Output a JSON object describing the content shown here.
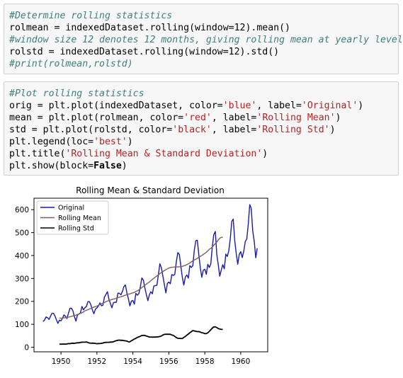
{
  "cells": [
    {
      "lines": [
        [
          {
            "t": "#Determine rolling statistics",
            "c": "comment"
          }
        ],
        [
          {
            "t": "rolmean = indexedDataset.rolling(window=12).mean()",
            "c": ""
          }
        ],
        [
          {
            "t": "#window size 12 denotes 12 months, giving rolling mean at yearly level",
            "c": "comment"
          }
        ],
        [
          {
            "t": "rolstd = indexedDataset.rolling(window=12).std()",
            "c": ""
          }
        ],
        [
          {
            "t": "#print(rolmean,rolstd)",
            "c": "comment"
          }
        ]
      ]
    },
    {
      "lines": [
        [
          {
            "t": "#Plot rolling statistics",
            "c": "comment"
          }
        ],
        [
          {
            "t": "orig = plt.plot(indexedDataset, color=",
            "c": ""
          },
          {
            "t": "'blue'",
            "c": "str"
          },
          {
            "t": ", label=",
            "c": ""
          },
          {
            "t": "'Original'",
            "c": "str"
          },
          {
            "t": ")",
            "c": ""
          }
        ],
        [
          {
            "t": "mean = plt.plot(rolmean, color=",
            "c": ""
          },
          {
            "t": "'red'",
            "c": "str"
          },
          {
            "t": ", label=",
            "c": ""
          },
          {
            "t": "'Rolling Mean'",
            "c": "str"
          },
          {
            "t": ")",
            "c": ""
          }
        ],
        [
          {
            "t": "std = plt.plot(rolstd, color=",
            "c": ""
          },
          {
            "t": "'black'",
            "c": "str"
          },
          {
            "t": ", label=",
            "c": ""
          },
          {
            "t": "'Rolling Std'",
            "c": "str"
          },
          {
            "t": ")",
            "c": ""
          }
        ],
        [
          {
            "t": "plt.legend(loc=",
            "c": ""
          },
          {
            "t": "'best'",
            "c": "str"
          },
          {
            "t": ")",
            "c": ""
          }
        ],
        [
          {
            "t": "plt.title(",
            "c": ""
          },
          {
            "t": "'Rolling Mean & Standard Deviation'",
            "c": "str"
          },
          {
            "t": ")",
            "c": ""
          }
        ],
        [
          {
            "t": "plt.show(block=",
            "c": ""
          },
          {
            "t": "False",
            "c": "bold"
          },
          {
            "t": ")",
            "c": ""
          }
        ]
      ]
    }
  ],
  "chart_data": {
    "type": "line",
    "title": "Rolling Mean & Standard Deviation",
    "xlabel": "",
    "ylabel": "",
    "xlim": [
      1948.5,
      1961.5
    ],
    "ylim": [
      -20,
      650
    ],
    "xticks": [
      1950,
      1952,
      1954,
      1956,
      1958,
      1960
    ],
    "yticks": [
      0,
      100,
      200,
      300,
      400,
      500,
      600
    ],
    "legend": "upper-left",
    "grid": false,
    "series": [
      {
        "name": "Original",
        "color": "#1a1aa8",
        "x_start": 1949.0,
        "x_step": 0.0833333,
        "values": [
          112,
          118,
          132,
          129,
          121,
          135,
          148,
          148,
          136,
          119,
          104,
          118,
          115,
          126,
          141,
          135,
          125,
          149,
          170,
          170,
          158,
          133,
          114,
          140,
          145,
          150,
          178,
          163,
          172,
          178,
          199,
          199,
          184,
          162,
          146,
          166,
          171,
          180,
          193,
          181,
          183,
          218,
          230,
          242,
          209,
          191,
          172,
          194,
          196,
          196,
          236,
          235,
          229,
          243,
          264,
          272,
          237,
          211,
          180,
          201,
          204,
          188,
          235,
          227,
          234,
          264,
          302,
          293,
          259,
          229,
          203,
          229,
          242,
          233,
          267,
          269,
          270,
          315,
          364,
          347,
          312,
          274,
          237,
          278,
          284,
          277,
          317,
          313,
          318,
          374,
          413,
          405,
          355,
          306,
          271,
          306,
          315,
          301,
          356,
          348,
          355,
          422,
          465,
          467,
          404,
          347,
          305,
          336,
          340,
          318,
          362,
          348,
          363,
          435,
          491,
          505,
          404,
          359,
          310,
          337,
          360,
          342,
          406,
          396,
          420,
          472,
          548,
          559,
          463,
          407,
          362,
          405,
          417,
          391,
          419,
          461,
          472,
          535,
          622,
          606,
          508,
          461,
          390,
          432
        ]
      },
      {
        "name": "Rolling Mean",
        "color": "#7f5f5f",
        "x_start": 1949.9167,
        "x_step": 0.0833333,
        "values": [
          126.7,
          126.9,
          127.4,
          128.3,
          128.8,
          129.8,
          131.0,
          132.8,
          134.7,
          136.6,
          138.3,
          139.7,
          142.8,
          144.5,
          147.7,
          150.3,
          154.2,
          158.8,
          161.3,
          163.8,
          166.8,
          169.4,
          172.3,
          175.0,
          177.0,
          179.0,
          183.0,
          186.2,
          189.5,
          191.8,
          194.9,
          198.2,
          201.3,
          203.2,
          205.7,
          208.4,
          209.8,
          211.3,
          214.3,
          215.9,
          217.9,
          219.9,
          222.1,
          224.5,
          226.7,
          229.4,
          231.9,
          232.1,
          235.2,
          237.2,
          239.2,
          242.8,
          245.8,
          250.2,
          254.8,
          260.8,
          265.3,
          270.0,
          275.5,
          280.5,
          284.1,
          290.3,
          295.8,
          300.8,
          306.0,
          311.0,
          315.6,
          320.8,
          325.6,
          329.5,
          334.3,
          338.2,
          341.8,
          345.2,
          347.4,
          348.5,
          349.2,
          349.8,
          349.9,
          350.4,
          350.7,
          350.7,
          352.8,
          355.0,
          357.0,
          360.4,
          364.0,
          367.5,
          372.2,
          376.7,
          380.2,
          383.9,
          387.7,
          392.8,
          396.4,
          400.0,
          404.9,
          409.3,
          414.3,
          419.9,
          427.2,
          431.3,
          436.6,
          444.8,
          452.3,
          458.9,
          467.5,
          475.7,
          478.9,
          480.2
        ]
      },
      {
        "name": "Rolling Std",
        "color": "#000000",
        "x_start": 1949.9167,
        "x_step": 0.0833333,
        "values": [
          13.7,
          13.5,
          13.7,
          14.0,
          13.4,
          14.3,
          15.8,
          15.6,
          16.9,
          17.8,
          17.0,
          18.2,
          19.6,
          19.3,
          21.1,
          21.7,
          22.0,
          22.0,
          22.9,
          20.8,
          18.3,
          17.5,
          18.0,
          17.3,
          16.7,
          15.2,
          16.0,
          15.9,
          17.0,
          18.4,
          20.6,
          21.2,
          21.3,
          21.3,
          22.5,
          22.4,
          23.8,
          26.7,
          28.7,
          30.2,
          31.0,
          30.1,
          30.2,
          28.8,
          27.9,
          26.8,
          23.1,
          23.5,
          28.3,
          32.0,
          35.8,
          38.7,
          42.9,
          45.0,
          48.2,
          51.4,
          51.6,
          51.6,
          48.4,
          46.8,
          44.5,
          44.6,
          44.0,
          44.2,
          44.3,
          44.7,
          45.5,
          46.6,
          48.9,
          53.3,
          56.0,
          56.6,
          56.8,
          56.7,
          56.2,
          53.5,
          51.5,
          47.0,
          42.2,
          38.8,
          38.6,
          38.2,
          38.0,
          42.7,
          47.4,
          52.8,
          57.6,
          63.1,
          67.8,
          72.7,
          71.2,
          69.5,
          68.1,
          68.2,
          66.0,
          63.5,
          62.0,
          59.4,
          59.6,
          62.8,
          69.3,
          76.0,
          83.1,
          89.0,
          88.5,
          86.0,
          81.3,
          79.3,
          78.0,
          77.7
        ]
      }
    ]
  }
}
